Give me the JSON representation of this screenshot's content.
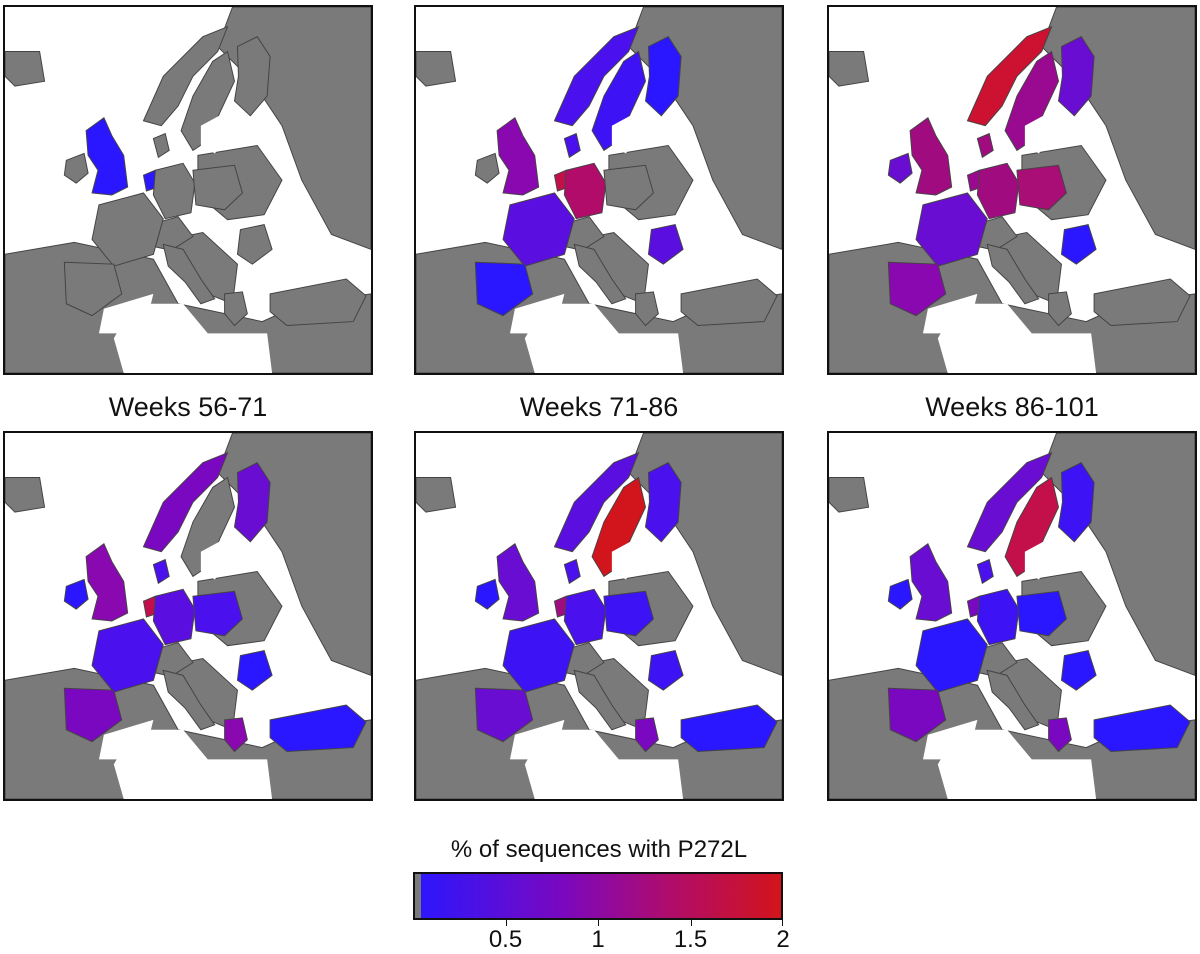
{
  "panels": [
    {
      "id": "p1",
      "title": "",
      "fills": {
        "uk": "#2a17ff",
        "ireland": "#7a7a7a",
        "norway": "#7a7a7a",
        "sweden": "#7a7a7a",
        "finland": "#7a7a7a",
        "denmark": "#7a7a7a",
        "netherlands": "#2a17ff",
        "germany": "#7a7a7a",
        "france": "#7a7a7a",
        "spain": "#7a7a7a",
        "italy": "#7a7a7a",
        "poland": "#7a7a7a",
        "romania": "#7a7a7a",
        "greece": "#7a7a7a",
        "turkey": "#7a7a7a"
      }
    },
    {
      "id": "p2",
      "title": "",
      "fills": {
        "uk": "#8a08b0",
        "ireland": "#7a7a7a",
        "norway": "#4a10ee",
        "sweden": "#3d12f4",
        "finland": "#2a17ff",
        "denmark": "#4a10ee",
        "netherlands": "#c4104a",
        "germany": "#b10c6a",
        "france": "#5a0fe0",
        "spain": "#2a17ff",
        "italy": "#7a7a7a",
        "poland": "#7a7a7a",
        "romania": "#5a0fe0",
        "greece": "#7a7a7a",
        "turkey": "#7a7a7a"
      }
    },
    {
      "id": "p3",
      "title": "",
      "fills": {
        "uk": "#a00c80",
        "ireland": "#6a0dd2",
        "norway": "#cc1230",
        "sweden": "#9a0a90",
        "finland": "#6a0dd2",
        "denmark": "#a00c80",
        "netherlands": "#9a0a90",
        "germany": "#a00c80",
        "france": "#6a0dd2",
        "spain": "#8a08b0",
        "italy": "#7a7a7a",
        "poland": "#a90d76",
        "romania": "#2a17ff",
        "greece": "#7a7a7a",
        "turkey": "#7a7a7a"
      }
    },
    {
      "id": "p4",
      "title": "Weeks 56-71",
      "fills": {
        "uk": "#8a08b0",
        "ireland": "#2a17ff",
        "norway": "#7a08c0",
        "sweden": "#7a7a7a",
        "finland": "#6a0dd2",
        "denmark": "#4a10ee",
        "netherlands": "#c4104a",
        "germany": "#5a0fe0",
        "france": "#4a10ee",
        "spain": "#7a08c0",
        "italy": "#7a7a7a",
        "poland": "#4a10ee",
        "romania": "#2a17ff",
        "greece": "#8a08b0",
        "turkey": "#2a17ff"
      }
    },
    {
      "id": "p5",
      "title": "Weeks 71-86",
      "fills": {
        "uk": "#6a0dd2",
        "ireland": "#2a17ff",
        "norway": "#5a0fe0",
        "sweden": "#d2141c",
        "finland": "#4a10ee",
        "denmark": "#4a10ee",
        "netherlands": "#a00c80",
        "germany": "#4a10ee",
        "france": "#3d12f4",
        "spain": "#6a0dd2",
        "italy": "#7a7a7a",
        "poland": "#3d12f4",
        "romania": "#3d12f4",
        "greece": "#7a08c0",
        "turkey": "#2a17ff"
      }
    },
    {
      "id": "p6",
      "title": "Weeks 86-101",
      "fills": {
        "uk": "#6a0dd2",
        "ireland": "#2a17ff",
        "norway": "#6a0dd2",
        "sweden": "#c4104a",
        "finland": "#3d12f4",
        "denmark": "#4a10ee",
        "netherlands": "#7a08c0",
        "germany": "#3d12f4",
        "france": "#2a17ff",
        "spain": "#7a08c0",
        "italy": "#7a7a7a",
        "poland": "#2a17ff",
        "romania": "#2a17ff",
        "greece": "#7a08c0",
        "turkey": "#2a17ff"
      }
    }
  ],
  "colors": {
    "land": "#7a7a7a",
    "water": "#ffffff",
    "border": "#444444",
    "low": "#2a17ff",
    "mid": "#7a08c0",
    "high": "#d2141c"
  },
  "legend": {
    "title": "% of sequences with P272L",
    "ticks": [
      {
        "label": "0.5",
        "value": 0.5
      },
      {
        "label": "1",
        "value": 1
      },
      {
        "label": "1.5",
        "value": 1.5
      },
      {
        "label": "2",
        "value": 2
      }
    ],
    "min": 0,
    "max": 2
  }
}
